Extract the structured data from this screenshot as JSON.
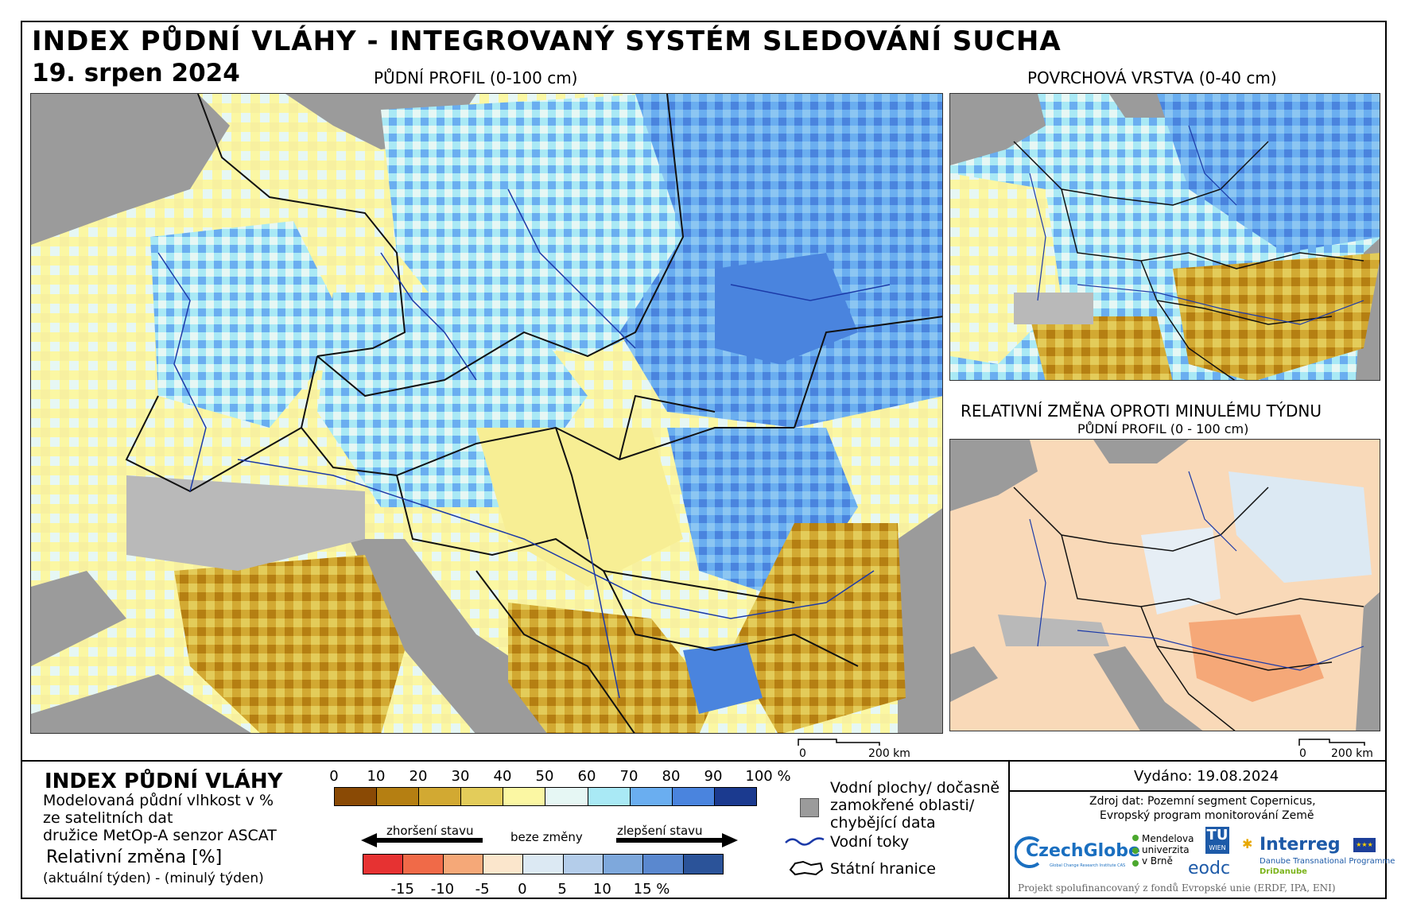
{
  "header": {
    "title": "INDEX PŮDNÍ VLÁHY - INTEGROVANÝ SYSTÉM SLEDOVÁNÍ SUCHA",
    "date": "19. srpen 2024"
  },
  "maps": {
    "main_caption": "PŮDNÍ PROFIL (0-100 cm)",
    "surface_caption": "POVRCHOVÁ VRSTVA (0-40 cm)",
    "change_caption": "RELATIVNÍ ZMĚNA OPROTI MINULÉMU TÝDNU",
    "change_subcaption": "PŮDNÍ PROFIL (0 - 100 cm)",
    "scale_zero": "0",
    "scale_label": "200 km"
  },
  "legend": {
    "title": "INDEX PŮDNÍ VLÁHY",
    "desc_line1": "Modelovaná půdní vlhkost v %",
    "desc_line2": "ze satelitních dat",
    "desc_line3": "družice MetOp-A senzor ASCAT",
    "rel_title": "Relativní změna [%]",
    "rel_desc": "(aktuální týden) - (minulý týden)",
    "index_ticks": [
      "0",
      "10",
      "20",
      "30",
      "40",
      "50",
      "60",
      "70",
      "80",
      "90",
      "100 %"
    ],
    "index_colors": [
      "#8a4a05",
      "#b57f12",
      "#d2a932",
      "#e3cc5a",
      "#fbf7a3",
      "#e6f7f4",
      "#a9e9f5",
      "#6aaef0",
      "#4a84de",
      "#1b3a8f"
    ],
    "change_ticks": [
      "-15",
      "-10",
      "-5",
      "0",
      "5",
      "10",
      "15 %"
    ],
    "change_colors": [
      "#e63232",
      "#f06a48",
      "#f5a878",
      "#fbe6cc",
      "#dce9f3",
      "#b4cdea",
      "#7ea8dc",
      "#5a88cf",
      "#2b5399"
    ],
    "worse_label": "zhoršení stavu",
    "same_label": "beze změny",
    "better_label": "zlepšení stavu",
    "water_label_1": "Vodní plochy/ dočasně",
    "water_label_2": "zamokřené oblasti/",
    "water_label_3": "chybějící data",
    "rivers_label": "Vodní toky",
    "borders_label": "Státní hranice"
  },
  "info": {
    "issued": "Vydáno: 19.08.2024",
    "source_1": "Zdroj dat: Pozemní segment Copernicus,",
    "source_2": "Evropský program monitorování Země",
    "footer": "Projekt spolufinancovaný z fondů Evropské unie (ERDF, IPA, ENI)"
  },
  "logos": {
    "czechglobe": "CzechGlobe",
    "czechglobe_sub": "Global Change Research Institute CAS",
    "mendelu_1": "Mendelova",
    "mendelu_2": "univerzita",
    "mendelu_3": "v Brně",
    "tu": "TU",
    "tu_sub": "WIEN",
    "eodc": "eodc",
    "interreg": "Interreg",
    "interreg_sub_1": "Danube Transnational Programme",
    "interreg_sub_2": "DriDanube"
  }
}
